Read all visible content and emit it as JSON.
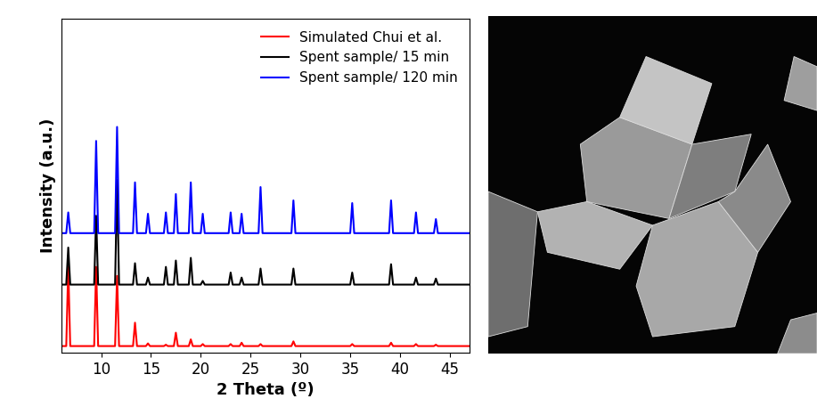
{
  "chart_data": {
    "type": "line",
    "x_label": "2 Theta (º)",
    "y_label": "Intensity (a.u.)",
    "xlim": [
      6,
      47
    ],
    "xticks": [
      10,
      15,
      20,
      25,
      30,
      35,
      40,
      45
    ],
    "ylim": [
      0,
      100
    ],
    "yticks": [],
    "tick_labels": "x",
    "legend": "upper right",
    "x": [
      6.0,
      6.5,
      6.7,
      6.9,
      9.3,
      9.5,
      9.7,
      11.4,
      11.6,
      11.8,
      13.2,
      13.4,
      13.6,
      14.5,
      14.7,
      14.9,
      16.3,
      16.5,
      16.7,
      17.3,
      17.5,
      17.7,
      18.8,
      19.0,
      19.2,
      20.0,
      20.2,
      20.4,
      22.8,
      23.0,
      23.2,
      23.9,
      24.1,
      24.3,
      25.8,
      26.0,
      26.2,
      29.1,
      29.3,
      29.5,
      35.0,
      35.2,
      35.4,
      38.9,
      39.1,
      39.3,
      41.4,
      41.6,
      41.8,
      43.4,
      43.6,
      43.8,
      47.0
    ],
    "series": [
      {
        "name": "Simulated Chui et al.",
        "color": "#ff0000",
        "values": [
          2,
          2,
          25.7,
          2,
          2,
          25.7,
          2,
          2,
          23,
          2,
          2,
          9,
          2,
          2,
          2.8,
          2,
          2,
          2.4,
          2,
          2,
          6,
          2,
          2,
          4,
          2,
          2,
          2.6,
          2,
          2,
          2.6,
          2,
          2,
          3,
          2,
          2,
          2.6,
          2,
          2,
          3.4,
          2,
          2,
          2.6,
          2,
          2,
          3,
          2,
          2,
          2.6,
          2,
          2,
          2.4,
          2,
          2
        ]
      },
      {
        "name": "Spent sample/ 15 min",
        "color": "#000000",
        "values": [
          20.4,
          20.4,
          31.5,
          20.4,
          20.4,
          41,
          20.4,
          20.4,
          51.7,
          20.4,
          20.4,
          26.8,
          20.4,
          20.4,
          22.5,
          20.4,
          20.4,
          25.7,
          20.4,
          20.4,
          27.6,
          20.4,
          20.4,
          28.4,
          20.4,
          20.4,
          21.5,
          20.4,
          20.4,
          24,
          20.4,
          20.4,
          22.5,
          20.4,
          20.4,
          25.2,
          20.4,
          20.4,
          25.2,
          20.4,
          20.4,
          24,
          20.4,
          20.4,
          26.5,
          20.4,
          20.4,
          22.5,
          20.4,
          20.4,
          22.2,
          20.4,
          20.4
        ]
      },
      {
        "name": "Spent sample/ 120 min",
        "color": "#0000ff",
        "values": [
          35.8,
          35.8,
          42,
          35.8,
          35.8,
          63.4,
          35.8,
          35.8,
          67.6,
          35.8,
          35.8,
          51,
          35.8,
          35.8,
          41.6,
          35.8,
          35.8,
          42,
          35.8,
          35.8,
          47.5,
          35.8,
          35.8,
          51,
          35.8,
          35.8,
          41.6,
          35.8,
          35.8,
          42,
          35.8,
          35.8,
          41.6,
          35.8,
          35.8,
          49.6,
          35.8,
          35.8,
          45.6,
          35.8,
          35.8,
          44.8,
          35.8,
          35.8,
          45.6,
          35.8,
          35.8,
          42,
          35.8,
          35.8,
          40,
          35.8,
          35.8
        ]
      }
    ]
  }
}
